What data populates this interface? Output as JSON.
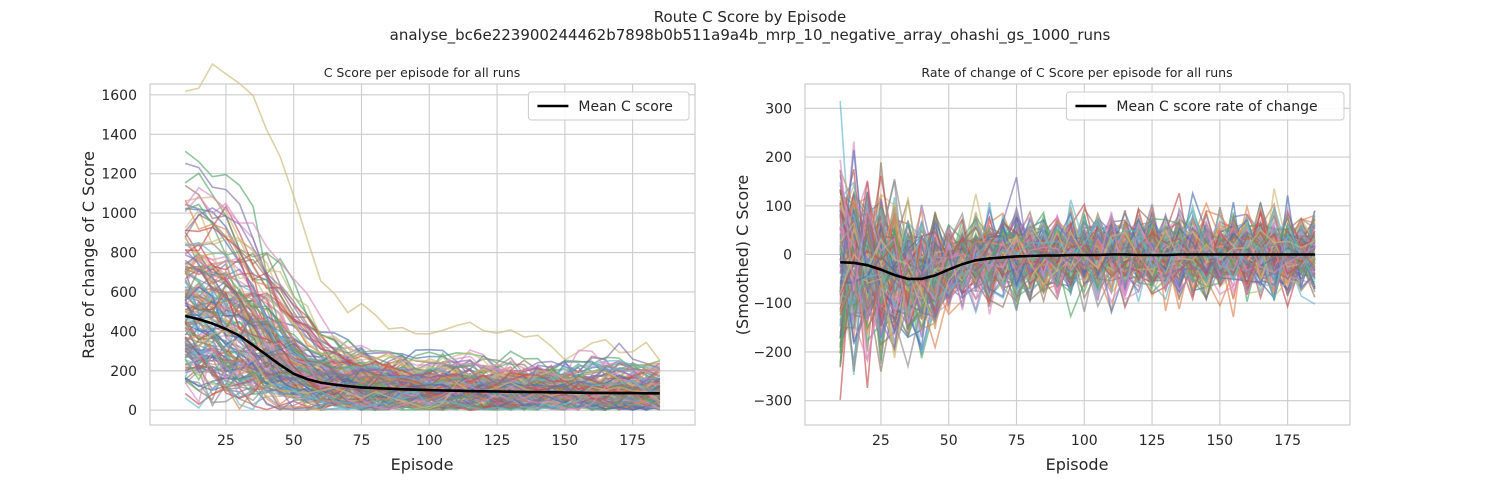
{
  "figure": {
    "title": "Route C Score by Episode",
    "subtitle": "analyse_bc6e223900244462b7898b0b511a9a4b_mrp_10_negative_array_ohashi_gs_1000_runs"
  },
  "chart_data": [
    {
      "type": "line",
      "title": "C Score per episode for all runs",
      "xlabel": "Episode",
      "ylabel": "Rate of change of C Score",
      "xlim": [
        -3,
        198
      ],
      "ylim": [
        -75,
        1655
      ],
      "xticks": [
        25,
        50,
        75,
        100,
        125,
        150,
        175
      ],
      "yticks": [
        0,
        200,
        400,
        600,
        800,
        1000,
        1200,
        1400,
        1600
      ],
      "grid": true,
      "legend_position": "top-right",
      "x": [
        10,
        15,
        20,
        25,
        30,
        35,
        40,
        45,
        50,
        55,
        60,
        65,
        70,
        75,
        80,
        85,
        90,
        95,
        100,
        105,
        110,
        115,
        120,
        125,
        130,
        135,
        140,
        145,
        150,
        155,
        160,
        165,
        170,
        175,
        180,
        185
      ],
      "series": [
        {
          "name": "Mean C score",
          "color": "#000000",
          "values": [
            478,
            462,
            440,
            412,
            378,
            330,
            280,
            230,
            185,
            158,
            140,
            130,
            122,
            116,
            112,
            109,
            106,
            104,
            102,
            100,
            99,
            97,
            96,
            95,
            94,
            93,
            92,
            91,
            90,
            89,
            88,
            88,
            87,
            87,
            86,
            86
          ]
        }
      ],
      "runs_count": 1000,
      "run_palette": [
        "#4c72b0",
        "#dd8452",
        "#55a868",
        "#c44e52",
        "#8172b3",
        "#937860",
        "#da8bc3",
        "#8c8c8c",
        "#ccb974",
        "#64b5cd"
      ]
    },
    {
      "type": "line",
      "title": "Rate of change of C Score per episode for all runs",
      "xlabel": "Episode",
      "ylabel": "(Smoothed) C Score",
      "xlim": [
        -3,
        198
      ],
      "ylim": [
        -350,
        350
      ],
      "xticks": [
        25,
        50,
        75,
        100,
        125,
        150,
        175
      ],
      "yticks": [
        -300,
        -200,
        -100,
        0,
        100,
        200,
        300
      ],
      "grid": true,
      "legend_position": "top-right",
      "x": [
        10,
        15,
        20,
        25,
        30,
        35,
        40,
        45,
        50,
        55,
        60,
        65,
        70,
        75,
        80,
        85,
        90,
        95,
        100,
        105,
        110,
        115,
        120,
        125,
        130,
        135,
        140,
        145,
        150,
        155,
        160,
        165,
        170,
        175,
        180,
        185
      ],
      "series": [
        {
          "name": "Mean C score rate of change",
          "color": "#000000",
          "values": [
            -16,
            -17,
            -22,
            -31,
            -42,
            -50,
            -50,
            -43,
            -31,
            -20,
            -12,
            -8,
            -6,
            -4,
            -3,
            -2,
            -2,
            -1,
            -1,
            -1,
            0,
            0,
            -1,
            -1,
            -1,
            0,
            0,
            0,
            0,
            0,
            0,
            0,
            0,
            0,
            0,
            0
          ]
        }
      ],
      "runs_count": 1000,
      "run_palette": [
        "#4c72b0",
        "#dd8452",
        "#55a868",
        "#c44e52",
        "#8172b3",
        "#937860",
        "#da8bc3",
        "#8c8c8c",
        "#ccb974",
        "#64b5cd"
      ]
    }
  ]
}
